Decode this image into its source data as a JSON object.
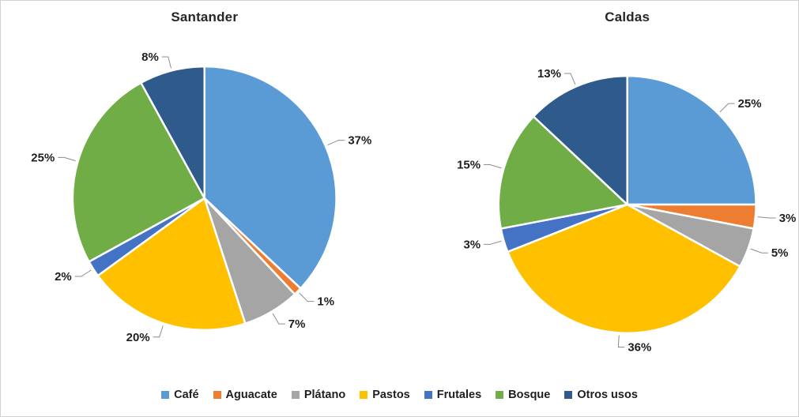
{
  "window": {
    "background": "#ffffff",
    "border_color": "#d2d2d2"
  },
  "style": {
    "label_color": "#1f1f1f",
    "title_color": "#262626",
    "leader_line_color": "#8c8c8c",
    "slice_separator_color": "#ffffff"
  },
  "chart_data": [
    {
      "type": "pie",
      "title": "Santander",
      "unit": "%",
      "start_angle": 0,
      "direction": "clockwise",
      "legend_position": "bottom-shared",
      "categories": [
        "Café",
        "Aguacate",
        "Plátano",
        "Pastos",
        "Frutales",
        "Bosque",
        "Otros usos"
      ],
      "values": [
        37,
        1,
        7,
        20,
        2,
        25,
        8
      ],
      "slices": [
        {
          "label": "Café",
          "value": 37,
          "display": "37%",
          "color": "#5B9BD5"
        },
        {
          "label": "Aguacate",
          "value": 1,
          "display": "1%",
          "color": "#ED7D31"
        },
        {
          "label": "Plátano",
          "value": 7,
          "display": "7%",
          "color": "#A5A5A5"
        },
        {
          "label": "Pastos",
          "value": 20,
          "display": "20%",
          "color": "#FFC000"
        },
        {
          "label": "Frutales",
          "value": 2,
          "display": "2%",
          "color": "#4472C4"
        },
        {
          "label": "Bosque",
          "value": 25,
          "display": "25%",
          "color": "#70AD47"
        },
        {
          "label": "Otros usos",
          "value": 8,
          "display": "8%",
          "color": "#2E5B8C"
        }
      ]
    },
    {
      "type": "pie",
      "title": "Caldas",
      "unit": "%",
      "start_angle": 0,
      "direction": "clockwise",
      "legend_position": "bottom-shared",
      "categories": [
        "Café",
        "Aguacate",
        "Plátano",
        "Pastos",
        "Frutales",
        "Bosque",
        "Otros usos"
      ],
      "values": [
        25,
        3,
        5,
        36,
        3,
        15,
        13
      ],
      "slices": [
        {
          "label": "Café",
          "value": 25,
          "display": "25%",
          "color": "#5B9BD5"
        },
        {
          "label": "Aguacate",
          "value": 3,
          "display": "3%",
          "color": "#ED7D31"
        },
        {
          "label": "Plátano",
          "value": 5,
          "display": "5%",
          "color": "#A5A5A5"
        },
        {
          "label": "Pastos",
          "value": 36,
          "display": "36%",
          "color": "#FFC000"
        },
        {
          "label": "Frutales",
          "value": 3,
          "display": "3%",
          "color": "#4472C4"
        },
        {
          "label": "Bosque",
          "value": 15,
          "display": "15%",
          "color": "#70AD47"
        },
        {
          "label": "Otros usos",
          "value": 13,
          "display": "13%",
          "color": "#2E5B8C"
        }
      ]
    }
  ],
  "legend": {
    "items": [
      {
        "label": "Café",
        "color": "#5B9BD5"
      },
      {
        "label": "Aguacate",
        "color": "#ED7D31"
      },
      {
        "label": "Plátano",
        "color": "#A5A5A5"
      },
      {
        "label": "Pastos",
        "color": "#FFC000"
      },
      {
        "label": "Frutales",
        "color": "#4472C4"
      },
      {
        "label": "Bosque",
        "color": "#70AD47"
      },
      {
        "label": "Otros usos",
        "color": "#2E5B8C"
      }
    ]
  }
}
